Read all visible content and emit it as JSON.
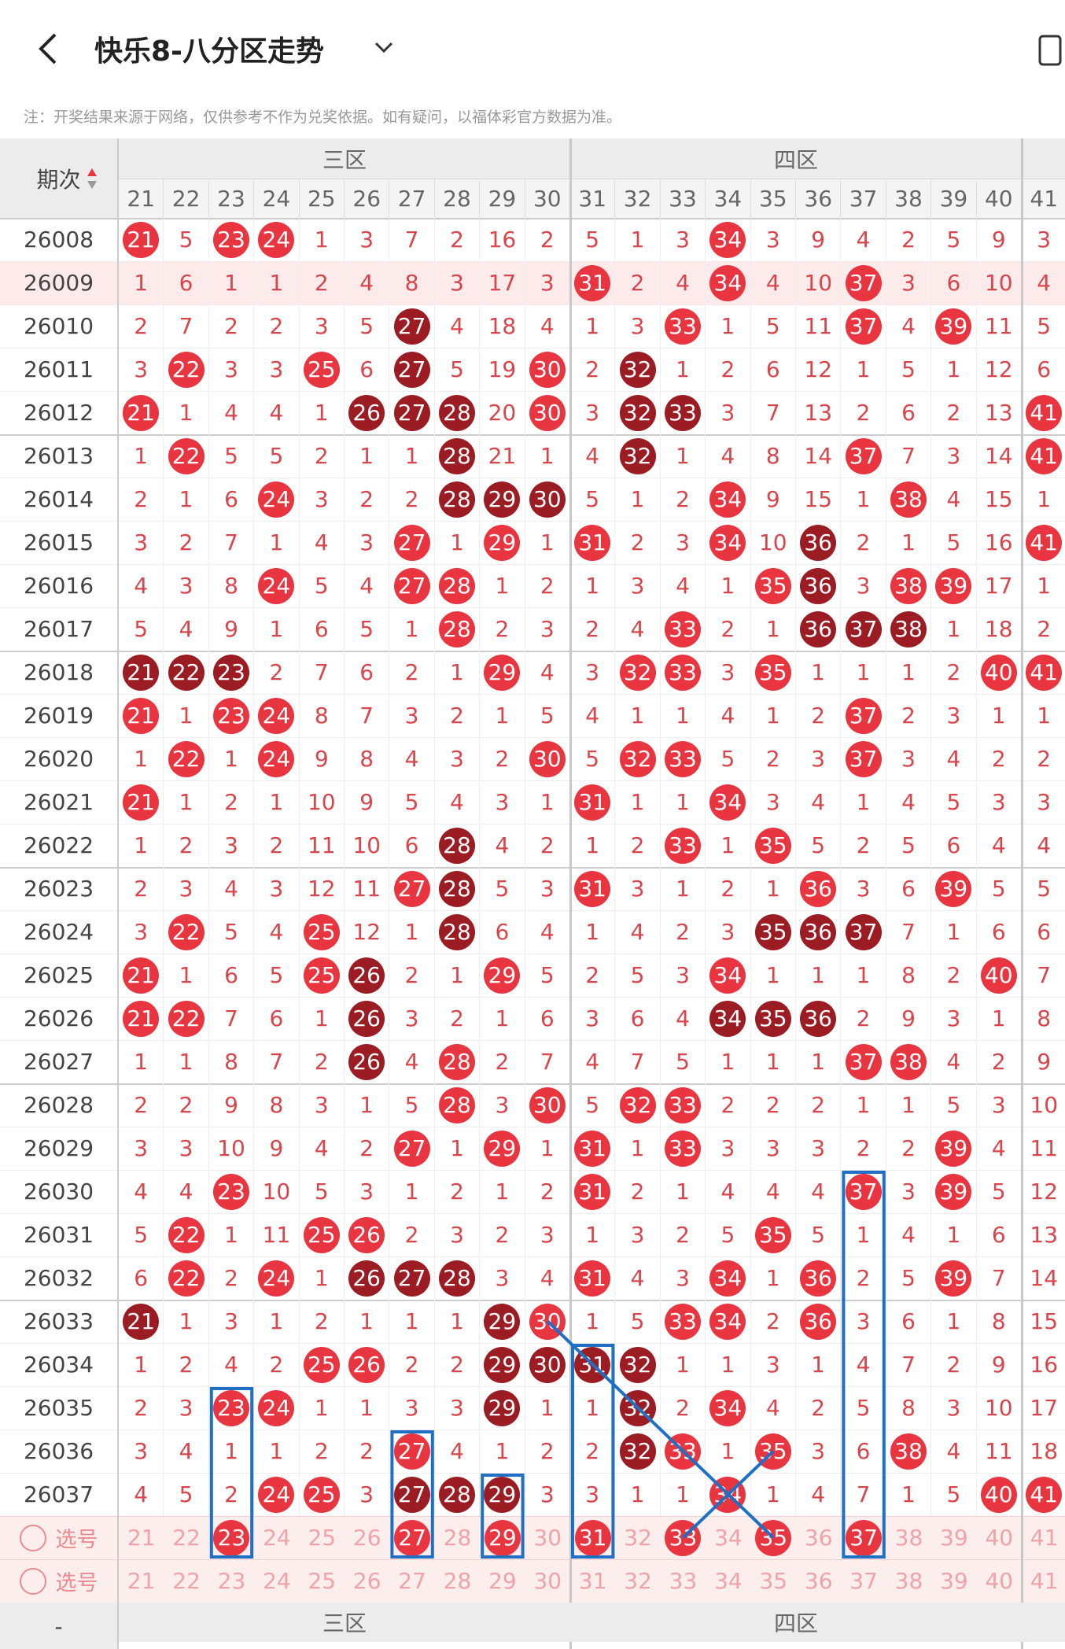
{
  "header": {
    "title": "快乐8-八分区走势"
  },
  "note": "注：开奖结果来源于网络，仅供参考不作为兑奖依据。如有疑问，以福体彩官方数据为准。",
  "table": {
    "issue_label": "期次",
    "zones": [
      "三区",
      "四区"
    ],
    "footer_left": "-",
    "columns": [
      21,
      22,
      23,
      24,
      25,
      26,
      27,
      28,
      29,
      30,
      31,
      32,
      33,
      34,
      35,
      36,
      37,
      38,
      39,
      40,
      41
    ],
    "rows": [
      {
        "issue": "26008",
        "values": [
          21,
          5,
          23,
          24,
          1,
          3,
          7,
          2,
          16,
          2,
          5,
          1,
          3,
          34,
          3,
          9,
          4,
          2,
          5,
          9,
          3
        ],
        "dark": []
      },
      {
        "issue": "26009",
        "values": [
          1,
          6,
          1,
          1,
          2,
          4,
          8,
          3,
          17,
          3,
          31,
          2,
          4,
          34,
          4,
          10,
          37,
          3,
          6,
          10,
          4
        ],
        "dark": []
      },
      {
        "issue": "26010",
        "values": [
          2,
          7,
          2,
          2,
          3,
          5,
          27,
          4,
          18,
          4,
          1,
          3,
          33,
          1,
          5,
          11,
          37,
          4,
          39,
          11,
          5
        ],
        "dark": [
          27
        ]
      },
      {
        "issue": "26011",
        "values": [
          3,
          22,
          3,
          3,
          25,
          6,
          27,
          5,
          19,
          30,
          2,
          32,
          1,
          2,
          6,
          12,
          1,
          5,
          1,
          12,
          6
        ],
        "dark": [
          27,
          32
        ]
      },
      {
        "issue": "26012",
        "values": [
          21,
          1,
          4,
          4,
          1,
          26,
          27,
          28,
          20,
          30,
          3,
          32,
          33,
          3,
          7,
          13,
          2,
          6,
          2,
          13,
          41
        ],
        "dark": [
          26,
          27,
          28,
          32,
          33
        ]
      },
      {
        "issue": "26013",
        "values": [
          1,
          22,
          5,
          5,
          2,
          1,
          1,
          28,
          21,
          1,
          4,
          32,
          1,
          4,
          8,
          14,
          37,
          7,
          3,
          14,
          41
        ],
        "dark": [
          28,
          32
        ]
      },
      {
        "issue": "26014",
        "values": [
          2,
          1,
          6,
          24,
          3,
          2,
          2,
          28,
          29,
          30,
          5,
          1,
          2,
          34,
          9,
          15,
          1,
          38,
          4,
          15,
          1
        ],
        "dark": [
          28,
          29,
          30
        ]
      },
      {
        "issue": "26015",
        "values": [
          3,
          2,
          7,
          1,
          4,
          3,
          27,
          1,
          29,
          1,
          31,
          2,
          3,
          34,
          10,
          36,
          2,
          1,
          5,
          16,
          41
        ],
        "dark": [
          36
        ]
      },
      {
        "issue": "26016",
        "values": [
          4,
          3,
          8,
          24,
          5,
          4,
          27,
          28,
          1,
          2,
          1,
          3,
          4,
          1,
          35,
          36,
          3,
          38,
          39,
          17,
          1
        ],
        "dark": [
          36
        ]
      },
      {
        "issue": "26017",
        "values": [
          5,
          4,
          9,
          1,
          6,
          5,
          1,
          28,
          2,
          3,
          2,
          4,
          33,
          2,
          1,
          36,
          37,
          38,
          1,
          18,
          2
        ],
        "dark": [
          36,
          37,
          38
        ]
      },
      {
        "issue": "26018",
        "values": [
          21,
          22,
          23,
          2,
          7,
          6,
          2,
          1,
          29,
          4,
          3,
          32,
          33,
          3,
          35,
          1,
          1,
          1,
          2,
          40,
          41
        ],
        "dark": [
          21,
          22,
          23
        ]
      },
      {
        "issue": "26019",
        "values": [
          21,
          1,
          23,
          24,
          8,
          7,
          3,
          2,
          1,
          5,
          4,
          1,
          1,
          4,
          1,
          2,
          37,
          2,
          3,
          1,
          1
        ],
        "dark": []
      },
      {
        "issue": "26020",
        "values": [
          1,
          22,
          1,
          24,
          9,
          8,
          4,
          3,
          2,
          30,
          5,
          32,
          33,
          5,
          2,
          3,
          37,
          3,
          4,
          2,
          2
        ],
        "dark": []
      },
      {
        "issue": "26021",
        "values": [
          21,
          1,
          2,
          1,
          10,
          9,
          5,
          4,
          3,
          1,
          31,
          1,
          1,
          34,
          3,
          4,
          1,
          4,
          5,
          3,
          3
        ],
        "dark": []
      },
      {
        "issue": "26022",
        "values": [
          1,
          2,
          3,
          2,
          11,
          10,
          6,
          28,
          4,
          2,
          1,
          2,
          33,
          1,
          35,
          5,
          2,
          5,
          6,
          4,
          4
        ],
        "dark": [
          28
        ]
      },
      {
        "issue": "26023",
        "values": [
          2,
          3,
          4,
          3,
          12,
          11,
          27,
          28,
          5,
          3,
          31,
          3,
          1,
          2,
          1,
          36,
          3,
          6,
          39,
          5,
          5
        ],
        "dark": [
          28
        ]
      },
      {
        "issue": "26024",
        "values": [
          3,
          22,
          5,
          4,
          25,
          12,
          1,
          28,
          6,
          4,
          1,
          4,
          2,
          3,
          35,
          36,
          37,
          7,
          1,
          6,
          6
        ],
        "dark": [
          28,
          35,
          36,
          37
        ]
      },
      {
        "issue": "26025",
        "values": [
          21,
          1,
          6,
          5,
          25,
          26,
          2,
          1,
          29,
          5,
          2,
          5,
          3,
          34,
          1,
          1,
          1,
          8,
          2,
          40,
          7
        ],
        "dark": [
          26
        ]
      },
      {
        "issue": "26026",
        "values": [
          21,
          22,
          7,
          6,
          1,
          26,
          3,
          2,
          1,
          6,
          3,
          6,
          4,
          34,
          35,
          36,
          2,
          9,
          3,
          1,
          8
        ],
        "dark": [
          26,
          34,
          35,
          36
        ]
      },
      {
        "issue": "26027",
        "values": [
          1,
          1,
          8,
          7,
          2,
          26,
          4,
          28,
          2,
          7,
          4,
          7,
          5,
          1,
          1,
          1,
          37,
          38,
          4,
          2,
          9
        ],
        "dark": [
          26
        ]
      },
      {
        "issue": "26028",
        "values": [
          2,
          2,
          9,
          8,
          3,
          1,
          5,
          28,
          3,
          30,
          5,
          32,
          33,
          2,
          2,
          2,
          1,
          1,
          5,
          3,
          10
        ],
        "dark": []
      },
      {
        "issue": "26029",
        "values": [
          3,
          3,
          10,
          9,
          4,
          2,
          27,
          1,
          29,
          1,
          31,
          1,
          33,
          3,
          3,
          3,
          2,
          2,
          39,
          4,
          11
        ],
        "dark": []
      },
      {
        "issue": "26030",
        "values": [
          4,
          4,
          23,
          10,
          5,
          3,
          1,
          2,
          1,
          2,
          31,
          2,
          1,
          4,
          4,
          4,
          37,
          3,
          39,
          5,
          12
        ],
        "dark": []
      },
      {
        "issue": "26031",
        "values": [
          5,
          22,
          1,
          11,
          25,
          26,
          2,
          3,
          2,
          3,
          1,
          3,
          2,
          5,
          35,
          5,
          1,
          4,
          1,
          6,
          13
        ],
        "dark": []
      },
      {
        "issue": "26032",
        "values": [
          6,
          22,
          2,
          24,
          1,
          26,
          27,
          28,
          3,
          4,
          31,
          4,
          3,
          34,
          1,
          36,
          2,
          5,
          39,
          7,
          14
        ],
        "dark": [
          26,
          27,
          28
        ]
      },
      {
        "issue": "26033",
        "values": [
          21,
          1,
          3,
          1,
          2,
          1,
          1,
          1,
          29,
          30,
          1,
          5,
          33,
          34,
          2,
          36,
          3,
          6,
          1,
          8,
          15
        ],
        "dark": [
          21,
          29
        ]
      },
      {
        "issue": "26034",
        "values": [
          1,
          2,
          4,
          2,
          25,
          26,
          2,
          2,
          29,
          30,
          31,
          32,
          1,
          1,
          3,
          1,
          4,
          7,
          2,
          9,
          16
        ],
        "dark": [
          29,
          30,
          31,
          32
        ]
      },
      {
        "issue": "26035",
        "values": [
          2,
          3,
          23,
          24,
          1,
          1,
          3,
          3,
          29,
          1,
          1,
          32,
          2,
          34,
          4,
          2,
          5,
          8,
          3,
          10,
          17
        ],
        "dark": [
          29,
          32
        ]
      },
      {
        "issue": "26036",
        "values": [
          3,
          4,
          1,
          1,
          2,
          2,
          27,
          4,
          1,
          2,
          2,
          32,
          33,
          1,
          35,
          3,
          6,
          38,
          4,
          11,
          18
        ],
        "dark": [
          32
        ]
      },
      {
        "issue": "26037",
        "values": [
          4,
          5,
          2,
          24,
          25,
          3,
          27,
          28,
          29,
          3,
          3,
          1,
          1,
          34,
          1,
          4,
          7,
          1,
          5,
          40,
          41
        ],
        "dark": [
          27,
          28,
          29
        ]
      }
    ],
    "select_rows": [
      {
        "label": "选号",
        "values": [
          21,
          22,
          23,
          24,
          25,
          26,
          27,
          28,
          29,
          30,
          31,
          32,
          33,
          34,
          35,
          36,
          37,
          38,
          39,
          40,
          41
        ],
        "selected": [
          23,
          27,
          29,
          31,
          33,
          35,
          37
        ]
      },
      {
        "label": "选号",
        "values": [
          21,
          22,
          23,
          24,
          25,
          26,
          27,
          28,
          29,
          30,
          31,
          32,
          33,
          34,
          35,
          36,
          37,
          38,
          39,
          40,
          41
        ],
        "selected": []
      }
    ]
  }
}
